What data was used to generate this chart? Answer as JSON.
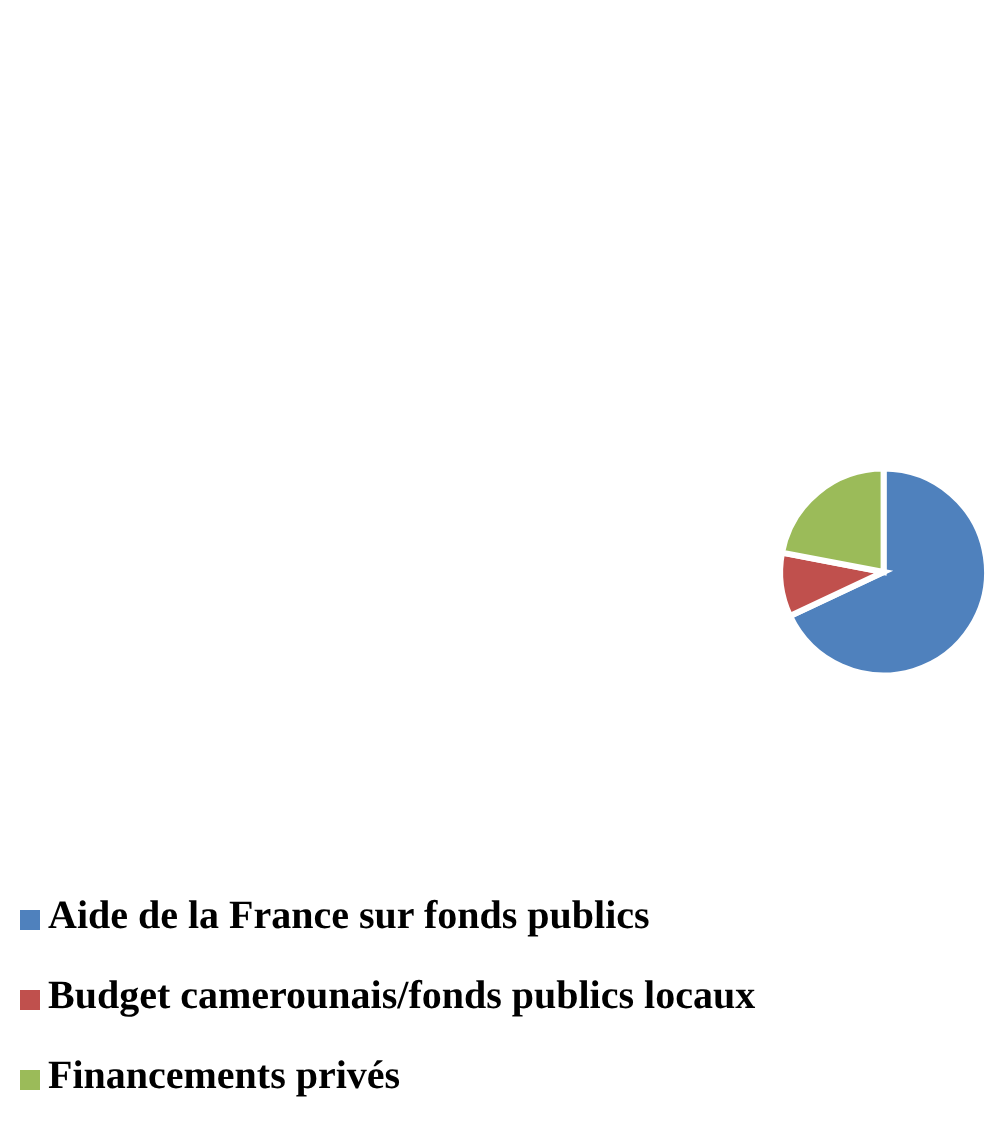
{
  "chart_data": {
    "type": "pie",
    "categories": [
      "Aide de la France sur fonds publics",
      "Budget camerounais/fonds publics locaux",
      "Financements privés"
    ],
    "values": [
      68,
      10,
      22
    ],
    "colors": [
      "#4f81bd",
      "#c0504d",
      "#9bbb59"
    ],
    "legend": "bottom"
  }
}
